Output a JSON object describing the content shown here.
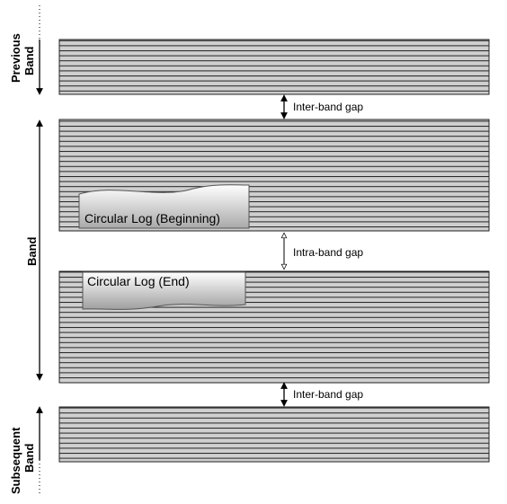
{
  "labels": {
    "previous_band": [
      "Previous",
      "Band"
    ],
    "band": "Band",
    "subsequent_band": [
      "Subsequent",
      "Band"
    ],
    "inter_band_gap_top": "Inter-band gap",
    "intra_band_gap": "Intra-band gap",
    "inter_band_gap_bottom": "Inter-band gap",
    "circular_log_beginning": "Circular Log (Beginning)",
    "circular_log_end": "Circular Log (End)"
  },
  "colors": {
    "track_fill": "#cfcfcf",
    "track_stroke": "#222222",
    "log_fill_light": "#ffffff",
    "log_fill_dark": "#a9a9a9",
    "text": "#000000"
  }
}
